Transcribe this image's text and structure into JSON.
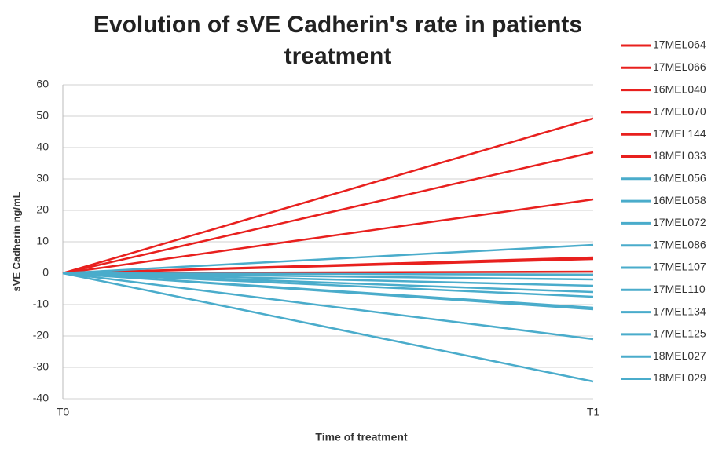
{
  "chart_data": {
    "type": "line",
    "title": "Evolution of sVE Cadherin's rate in patients treatment",
    "x_label": "Time of treatment",
    "y_label": "sVE Cadherin ng/mL",
    "categories": [
      "T0",
      "T1"
    ],
    "ylim": [
      -40,
      60
    ],
    "yticks": [
      -40,
      -30,
      -20,
      -10,
      0,
      10,
      20,
      30,
      40,
      50,
      60
    ],
    "grid": true,
    "legend": "right",
    "series": [
      {
        "name": "17MEL064",
        "color": "#e8201e",
        "values": [
          0,
          49.3
        ]
      },
      {
        "name": "17MEL066",
        "color": "#e8201e",
        "values": [
          0,
          38.5
        ]
      },
      {
        "name": "16MEL040",
        "color": "#e8201e",
        "values": [
          0,
          23.5
        ]
      },
      {
        "name": "17MEL070",
        "color": "#e8201e",
        "values": [
          0,
          5
        ]
      },
      {
        "name": "17MEL144",
        "color": "#e8201e",
        "values": [
          0,
          4.5
        ]
      },
      {
        "name": "18MEL033",
        "color": "#e8201e",
        "values": [
          0,
          0.5
        ]
      },
      {
        "name": "16MEL056",
        "color": "#4aaccb",
        "values": [
          0,
          9
        ]
      },
      {
        "name": "16MEL058",
        "color": "#4aaccb",
        "values": [
          0,
          -0.5
        ]
      },
      {
        "name": "17MEL072",
        "color": "#4aaccb",
        "values": [
          0,
          -2
        ]
      },
      {
        "name": "17MEL086",
        "color": "#4aaccb",
        "values": [
          0,
          -4
        ]
      },
      {
        "name": "17MEL107",
        "color": "#4aaccb",
        "values": [
          0,
          -6
        ]
      },
      {
        "name": "17MEL110",
        "color": "#4aaccb",
        "values": [
          0,
          -7.5
        ]
      },
      {
        "name": "17MEL134",
        "color": "#4aaccb",
        "values": [
          0,
          -11
        ]
      },
      {
        "name": "17MEL125",
        "color": "#4aaccb",
        "values": [
          0,
          -11.5
        ]
      },
      {
        "name": "18MEL027",
        "color": "#4aaccb",
        "values": [
          0,
          -21
        ]
      },
      {
        "name": "18MEL029",
        "color": "#4aaccb",
        "values": [
          0,
          -34.5
        ]
      }
    ]
  }
}
